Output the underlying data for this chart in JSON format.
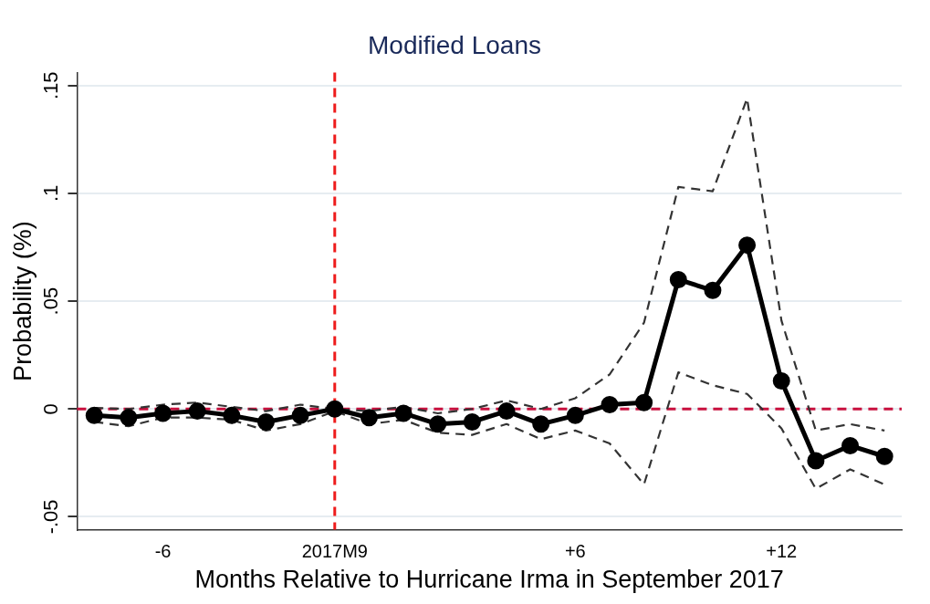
{
  "chart_data": {
    "type": "line",
    "title": "Modified Loans",
    "xlabel": "Months Relative to Hurricane Irma in September 2017",
    "ylabel": "Probability (%)",
    "categories": [
      null,
      null,
      "-6",
      null,
      null,
      null,
      null,
      "2017M9",
      null,
      null,
      null,
      null,
      null,
      null,
      "+6",
      null,
      null,
      null,
      null,
      null,
      "+12",
      null,
      null,
      null
    ],
    "series": [
      {
        "color": "#000000",
        "marker": "circle",
        "line_style": "solid",
        "values": [
          -0.003,
          -0.004,
          -0.002,
          -0.001,
          -0.003,
          -0.006,
          -0.003,
          0,
          -0.004,
          -0.002,
          -0.007,
          -0.006,
          -0.001,
          -0.007,
          -0.003,
          0.002,
          0.003,
          0.06,
          0.055,
          0.076,
          0.013,
          -0.024,
          -0.017,
          -0.022
        ]
      },
      {
        "color": "#333333",
        "marker": "none",
        "line_style": "dashed",
        "values": [
          0.0005,
          0,
          0.002,
          0.003,
          0.001,
          -0.001,
          0.002,
          0,
          -0.001,
          0.001,
          -0.002,
          0,
          0.004,
          0,
          0.005,
          0.016,
          0.04,
          0.103,
          0.101,
          0.144,
          0.041,
          -0.01,
          -0.007,
          -0.01
        ]
      },
      {
        "color": "#333333",
        "marker": "none",
        "line_style": "dashed",
        "values": [
          -0.006,
          -0.008,
          -0.004,
          -0.004,
          -0.005,
          -0.01,
          -0.007,
          -0.001,
          -0.007,
          -0.005,
          -0.011,
          -0.012,
          -0.007,
          -0.014,
          -0.01,
          -0.016,
          -0.035,
          0.017,
          0.011,
          0.007,
          -0.009,
          -0.037,
          -0.028,
          -0.035
        ]
      }
    ],
    "ylim": [
      -0.056,
      0.156
    ],
    "yticks": [
      {
        "value": -0.05,
        "label": "-.05"
      },
      {
        "value": 0,
        "label": "0"
      },
      {
        "value": 0.05,
        "label": ".05"
      },
      {
        "value": 0.1,
        "label": ".1"
      },
      {
        "value": 0.15,
        "label": ".15"
      }
    ],
    "grid": "y",
    "legend": false,
    "ref_lines": [
      {
        "axis": "x",
        "value": "2017M9",
        "color": "#ee1c1c",
        "line_style": "dashed"
      },
      {
        "axis": "y",
        "value": 0,
        "color": "#c8103e",
        "line_style": "dashed"
      }
    ]
  }
}
